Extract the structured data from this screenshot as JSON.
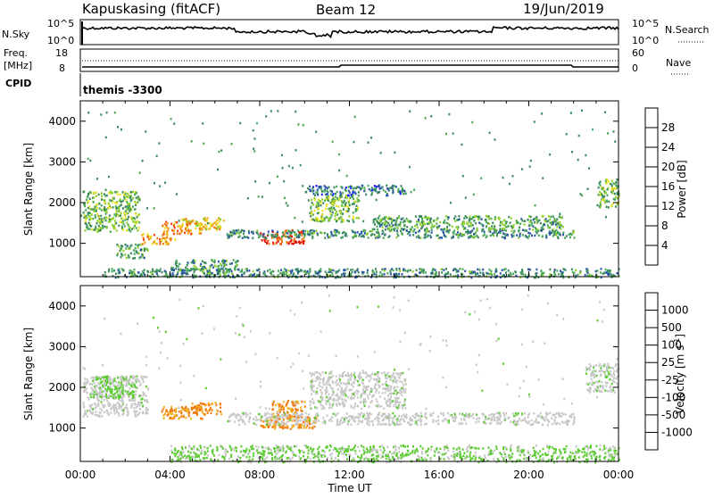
{
  "header": {
    "station": "Kapuskasing (fitACF)",
    "beam": "Beam 12",
    "date": "19/Jun/2019"
  },
  "noise_panel": {
    "left_label": "N.Sky",
    "right_label": "N.Search",
    "left_ticks": [
      "10^5",
      "10^0"
    ],
    "right_ticks": [
      "10^5",
      "10^0"
    ]
  },
  "freq_panel": {
    "left_label_1": "Freq.",
    "left_label_2": "[MHz]",
    "right_label": "Nave",
    "left_ticks": [
      "18",
      "8"
    ],
    "right_ticks": [
      "60",
      "0"
    ]
  },
  "cpid_panel": {
    "label": "CPID",
    "value": "themis -3300"
  },
  "chart_data": [
    {
      "type": "heatmap",
      "title": "",
      "ylabel": "Slant Range [km]",
      "xlabel": "Time UT",
      "x_ticks": [
        "00:00",
        "04:00",
        "08:00",
        "12:00",
        "16:00",
        "20:00",
        "00:00"
      ],
      "y_ticks": [
        "1000",
        "2000",
        "3000",
        "4000"
      ],
      "ylim": [
        180,
        4500
      ],
      "colorbar": {
        "label": "Power [dB]",
        "ticks": [
          "4",
          "8",
          "12",
          "16",
          "20",
          "24",
          "28"
        ],
        "range": [
          0,
          30
        ],
        "colors": [
          "#1a1aff",
          "#2b55a8",
          "#3a8a5c",
          "#4aa85a",
          "#8ecf2c",
          "#e8e020",
          "#f3b020",
          "#f07a10",
          "#f03c0a",
          "#e30b0b"
        ]
      },
      "regions": [
        {
          "t0": 0.1,
          "t1": 2.6,
          "r0": 1300,
          "r1": 2300,
          "value": 12
        },
        {
          "t0": 1.6,
          "t1": 3.0,
          "r0": 650,
          "r1": 1000,
          "value": 10
        },
        {
          "t0": 3.6,
          "t1": 5.4,
          "r0": 1250,
          "r1": 1550,
          "value": 22
        },
        {
          "t0": 4.5,
          "t1": 6.4,
          "r0": 1350,
          "r1": 1650,
          "value": 18
        },
        {
          "t0": 2.7,
          "t1": 4.2,
          "r0": 1000,
          "r1": 1250,
          "value": 20
        },
        {
          "t0": 4.0,
          "t1": 7.0,
          "r0": 350,
          "r1": 620,
          "value": 8
        },
        {
          "t0": 8.0,
          "t1": 10.0,
          "r0": 1000,
          "r1": 1350,
          "value": 26
        },
        {
          "t0": 10.2,
          "t1": 12.4,
          "r0": 1550,
          "r1": 2200,
          "value": 12
        },
        {
          "t0": 10.0,
          "t1": 14.5,
          "r0": 2200,
          "r1": 2450,
          "value": 6
        },
        {
          "t0": 6.5,
          "t1": 22.0,
          "r0": 1150,
          "r1": 1350,
          "value": 8
        },
        {
          "t0": 13.0,
          "t1": 21.5,
          "r0": 1350,
          "r1": 1700,
          "value": 10
        },
        {
          "t0": 23.0,
          "t1": 24.0,
          "r0": 1900,
          "r1": 2600,
          "value": 12
        },
        {
          "t0": 1.0,
          "t1": 24.0,
          "r0": 180,
          "r1": 400,
          "value": 8
        }
      ]
    },
    {
      "type": "heatmap",
      "title": "",
      "ylabel": "Slant Range [km]",
      "xlabel": "Time UT",
      "x_ticks": [
        "00:00",
        "04:00",
        "08:00",
        "12:00",
        "16:00",
        "20:00",
        "00:00"
      ],
      "y_ticks": [
        "1000",
        "2000",
        "3000",
        "4000"
      ],
      "ylim": [
        180,
        4500
      ],
      "colorbar": {
        "label": "Velocity [m s-1]",
        "label_main": "Velocity [m s",
        "label_exp": "-1",
        "label_tail": "]",
        "ticks": [
          "1000",
          "500",
          "100",
          "25",
          "-25",
          "-100",
          "-500",
          "-1000"
        ],
        "colors": [
          "#1a1aff",
          "#2b55a8",
          "#3a8a5c",
          "#5ccc32",
          "#c8c8c8",
          "#f3b020",
          "#f07a10",
          "#f03c0a",
          "#e30b0b"
        ]
      },
      "regions": [
        {
          "t0": 0.1,
          "t1": 3.0,
          "r0": 1300,
          "r1": 2300,
          "value": 0
        },
        {
          "t0": 0.5,
          "t1": 2.5,
          "r0": 1750,
          "r1": 2300,
          "value": 60
        },
        {
          "t0": 3.6,
          "t1": 5.4,
          "r0": 1250,
          "r1": 1550,
          "value": -200
        },
        {
          "t0": 4.6,
          "t1": 6.3,
          "r0": 1350,
          "r1": 1650,
          "value": -200
        },
        {
          "t0": 8.0,
          "t1": 10.5,
          "r0": 1000,
          "r1": 1300,
          "value": -200
        },
        {
          "t0": 8.5,
          "t1": 10.0,
          "r0": 1250,
          "r1": 1700,
          "value": -200
        },
        {
          "t0": 10.2,
          "t1": 14.5,
          "r0": 1500,
          "r1": 2400,
          "value": 0
        },
        {
          "t0": 6.5,
          "t1": 22.0,
          "r0": 1100,
          "r1": 1400,
          "value": 0
        },
        {
          "t0": 22.5,
          "t1": 24.0,
          "r0": 1900,
          "r1": 2600,
          "value": 0
        },
        {
          "t0": 4.0,
          "t1": 24.0,
          "r0": 180,
          "r1": 600,
          "value": 60
        }
      ]
    }
  ]
}
